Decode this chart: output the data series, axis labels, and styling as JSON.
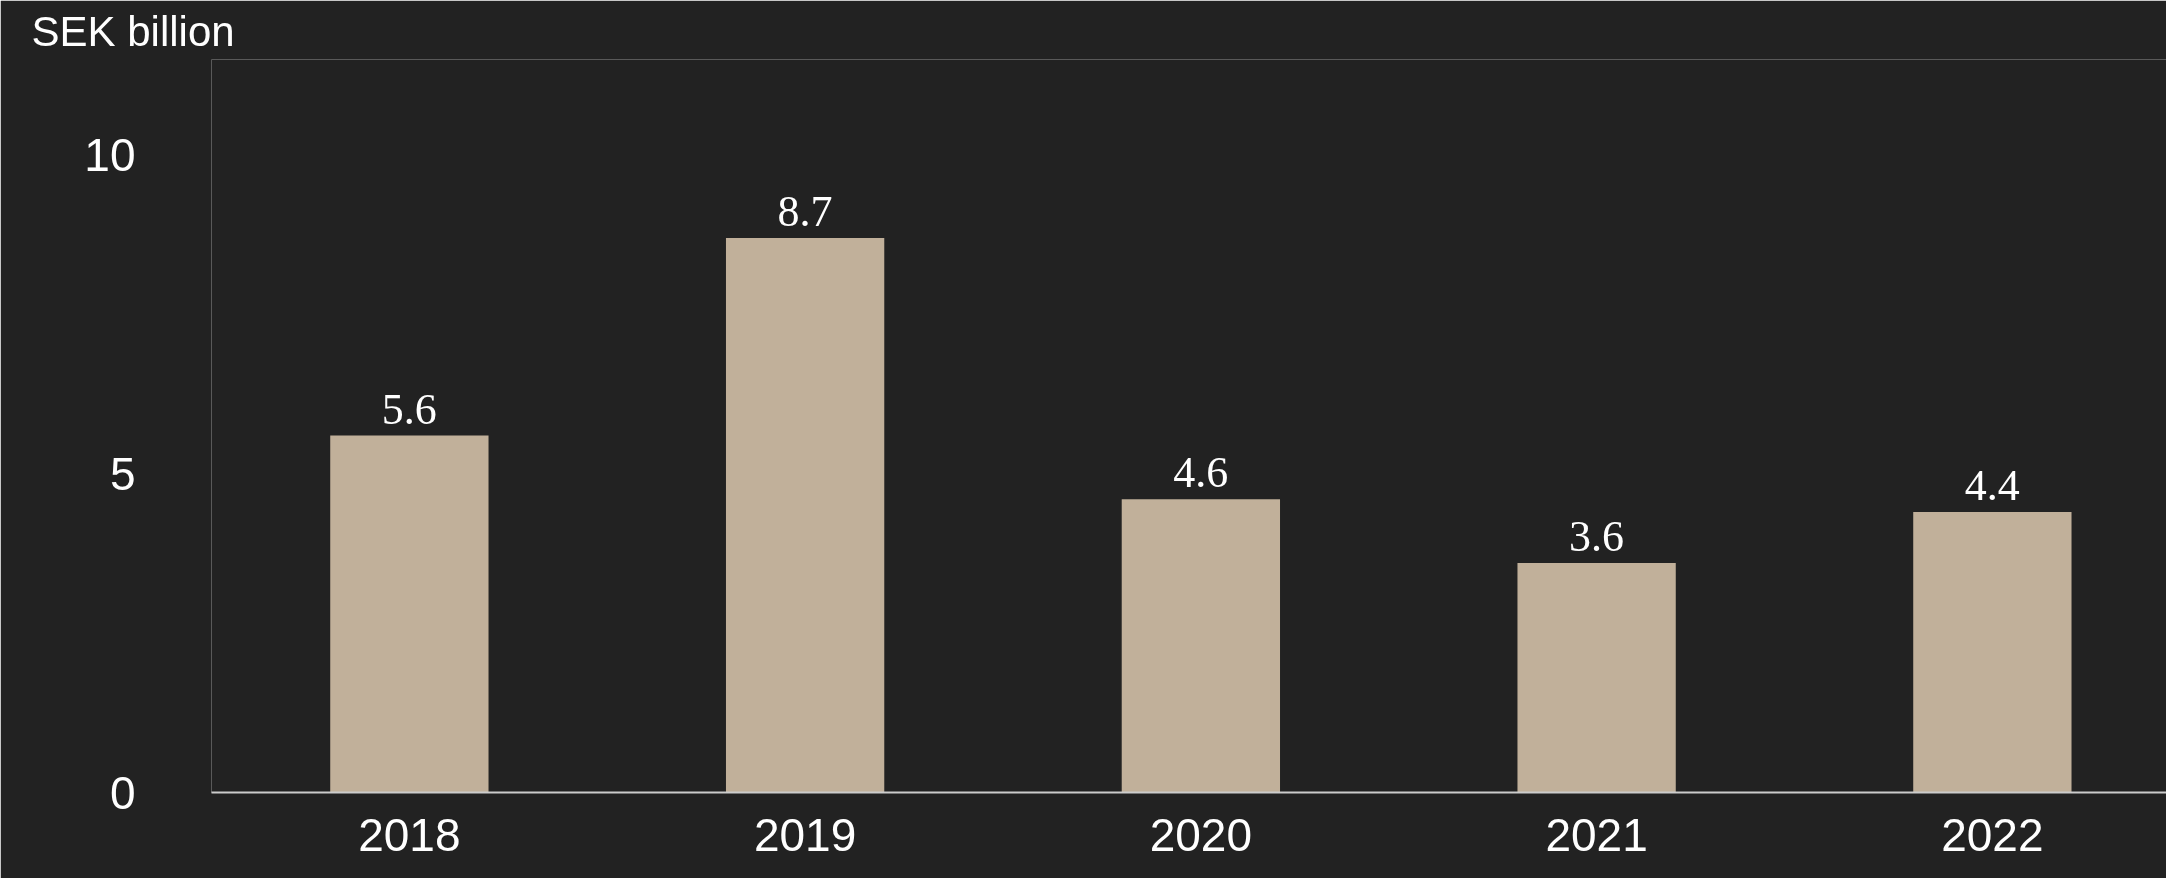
{
  "chart_data": {
    "type": "bar",
    "ylabel": "SEK billion",
    "categories": [
      "2018",
      "2019",
      "2020",
      "2021",
      "2022"
    ],
    "values": [
      5.6,
      8.7,
      4.6,
      3.6,
      4.4
    ],
    "color": "#c1b09a",
    "ylim": [
      0,
      11.5
    ],
    "yticks": [
      0,
      5,
      10
    ],
    "grid": false,
    "data_labels": true
  }
}
